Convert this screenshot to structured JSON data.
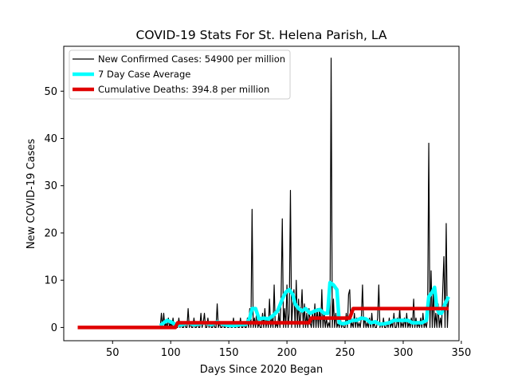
{
  "chart_data": {
    "type": "line",
    "title": "COVID-19 Stats For St. Helena Parish, LA",
    "xlabel": "Days Since 2020 Began",
    "ylabel": "New COVID-19 Cases",
    "xlim": [
      8,
      348
    ],
    "ylim": [
      -2.8,
      59.5
    ],
    "xticks": [
      50,
      100,
      150,
      200,
      250,
      300,
      350
    ],
    "yticks": [
      0,
      10,
      20,
      30,
      40,
      50
    ],
    "legend_position": "top-left",
    "grid": false,
    "series": [
      {
        "name": "New Confirmed Cases: 54900 per million",
        "color": "#000000",
        "points": [
          [
            91,
            0
          ],
          [
            92,
            3
          ],
          [
            93,
            0
          ],
          [
            94,
            3
          ],
          [
            95,
            0
          ],
          [
            96,
            1
          ],
          [
            97,
            0
          ],
          [
            98,
            2
          ],
          [
            99,
            0
          ],
          [
            100,
            1
          ],
          [
            101,
            0
          ],
          [
            102,
            2
          ],
          [
            103,
            0
          ],
          [
            104,
            1
          ],
          [
            105,
            0
          ],
          [
            106,
            0
          ],
          [
            107,
            2
          ],
          [
            108,
            0
          ],
          [
            109,
            1
          ],
          [
            110,
            0
          ],
          [
            111,
            0
          ],
          [
            112,
            1
          ],
          [
            113,
            0
          ],
          [
            114,
            0
          ],
          [
            115,
            4
          ],
          [
            116,
            0
          ],
          [
            117,
            1
          ],
          [
            118,
            0
          ],
          [
            119,
            0
          ],
          [
            120,
            2
          ],
          [
            121,
            0
          ],
          [
            122,
            0
          ],
          [
            123,
            1
          ],
          [
            124,
            0
          ],
          [
            125,
            0
          ],
          [
            126,
            3
          ],
          [
            127,
            0
          ],
          [
            128,
            1
          ],
          [
            129,
            3
          ],
          [
            130,
            0
          ],
          [
            131,
            0
          ],
          [
            132,
            2
          ],
          [
            133,
            0
          ],
          [
            134,
            1
          ],
          [
            135,
            0
          ],
          [
            136,
            0
          ],
          [
            137,
            1
          ],
          [
            138,
            0
          ],
          [
            139,
            0
          ],
          [
            140,
            5
          ],
          [
            141,
            0
          ],
          [
            142,
            1
          ],
          [
            143,
            0
          ],
          [
            144,
            0
          ],
          [
            145,
            1
          ],
          [
            146,
            0
          ],
          [
            147,
            0
          ],
          [
            148,
            1
          ],
          [
            149,
            0
          ],
          [
            150,
            0
          ],
          [
            151,
            1
          ],
          [
            152,
            0
          ],
          [
            153,
            0
          ],
          [
            154,
            2
          ],
          [
            155,
            0
          ],
          [
            156,
            0
          ],
          [
            157,
            1
          ],
          [
            158,
            0
          ],
          [
            159,
            0
          ],
          [
            160,
            2
          ],
          [
            161,
            0
          ],
          [
            162,
            0
          ],
          [
            163,
            1
          ],
          [
            164,
            0
          ],
          [
            165,
            0
          ],
          [
            166,
            2
          ],
          [
            167,
            0
          ],
          [
            168,
            4
          ],
          [
            169,
            0
          ],
          [
            170,
            25
          ],
          [
            171,
            0
          ],
          [
            172,
            2
          ],
          [
            173,
            0
          ],
          [
            174,
            4
          ],
          [
            175,
            0
          ],
          [
            176,
            1
          ],
          [
            177,
            0
          ],
          [
            178,
            0
          ],
          [
            179,
            3
          ],
          [
            180,
            0
          ],
          [
            181,
            4
          ],
          [
            182,
            0
          ],
          [
            183,
            2
          ],
          [
            184,
            0
          ],
          [
            185,
            6
          ],
          [
            186,
            0
          ],
          [
            187,
            2
          ],
          [
            188,
            0
          ],
          [
            189,
            9
          ],
          [
            190,
            0
          ],
          [
            191,
            1
          ],
          [
            192,
            0
          ],
          [
            193,
            3
          ],
          [
            194,
            0
          ],
          [
            195,
            7
          ],
          [
            196,
            23
          ],
          [
            197,
            0
          ],
          [
            198,
            4
          ],
          [
            199,
            0
          ],
          [
            200,
            9
          ],
          [
            201,
            0
          ],
          [
            202,
            3
          ],
          [
            203,
            29
          ],
          [
            204,
            0
          ],
          [
            205,
            5
          ],
          [
            206,
            8
          ],
          [
            207,
            0
          ],
          [
            208,
            10
          ],
          [
            209,
            0
          ],
          [
            210,
            6
          ],
          [
            211,
            0
          ],
          [
            212,
            3
          ],
          [
            213,
            8
          ],
          [
            214,
            0
          ],
          [
            215,
            5
          ],
          [
            216,
            0
          ],
          [
            217,
            3
          ],
          [
            218,
            0
          ],
          [
            219,
            4
          ],
          [
            220,
            1
          ],
          [
            221,
            0
          ],
          [
            222,
            3
          ],
          [
            223,
            0
          ],
          [
            224,
            5
          ],
          [
            225,
            0
          ],
          [
            226,
            4
          ],
          [
            227,
            0
          ],
          [
            228,
            4
          ],
          [
            229,
            0
          ],
          [
            230,
            8
          ],
          [
            231,
            0
          ],
          [
            232,
            3
          ],
          [
            233,
            0
          ],
          [
            234,
            2
          ],
          [
            235,
            0
          ],
          [
            236,
            1
          ],
          [
            237,
            0
          ],
          [
            238,
            57
          ],
          [
            239,
            0
          ],
          [
            240,
            6
          ],
          [
            241,
            0
          ],
          [
            242,
            3
          ],
          [
            243,
            0
          ],
          [
            244,
            1
          ],
          [
            245,
            0
          ],
          [
            246,
            2
          ],
          [
            247,
            0
          ],
          [
            248,
            1
          ],
          [
            249,
            0
          ],
          [
            250,
            0
          ],
          [
            251,
            3
          ],
          [
            252,
            0
          ],
          [
            253,
            7
          ],
          [
            254,
            8
          ],
          [
            255,
            0
          ],
          [
            256,
            1
          ],
          [
            257,
            0
          ],
          [
            258,
            3
          ],
          [
            259,
            0
          ],
          [
            260,
            2
          ],
          [
            261,
            0
          ],
          [
            262,
            1
          ],
          [
            263,
            0
          ],
          [
            264,
            2
          ],
          [
            265,
            9
          ],
          [
            266,
            0
          ],
          [
            267,
            2
          ],
          [
            268,
            0
          ],
          [
            269,
            1
          ],
          [
            270,
            0
          ],
          [
            271,
            2
          ],
          [
            272,
            0
          ],
          [
            273,
            3
          ],
          [
            274,
            0
          ],
          [
            275,
            1
          ],
          [
            276,
            0
          ],
          [
            277,
            0
          ],
          [
            278,
            2
          ],
          [
            279,
            9
          ],
          [
            280,
            0
          ],
          [
            281,
            1
          ],
          [
            282,
            0
          ],
          [
            283,
            2
          ],
          [
            284,
            0
          ],
          [
            285,
            0
          ],
          [
            286,
            1
          ],
          [
            287,
            0
          ],
          [
            288,
            2
          ],
          [
            289,
            0
          ],
          [
            290,
            1
          ],
          [
            291,
            0
          ],
          [
            292,
            3
          ],
          [
            293,
            0
          ],
          [
            294,
            0
          ],
          [
            295,
            2
          ],
          [
            296,
            0
          ],
          [
            297,
            4
          ],
          [
            298,
            0
          ],
          [
            299,
            1
          ],
          [
            300,
            0
          ],
          [
            301,
            2
          ],
          [
            302,
            0
          ],
          [
            303,
            3
          ],
          [
            304,
            0
          ],
          [
            305,
            1
          ],
          [
            306,
            0
          ],
          [
            307,
            2
          ],
          [
            308,
            0
          ],
          [
            309,
            6
          ],
          [
            310,
            0
          ],
          [
            311,
            2
          ],
          [
            312,
            0
          ],
          [
            313,
            1
          ],
          [
            314,
            0
          ],
          [
            315,
            2
          ],
          [
            316,
            0
          ],
          [
            317,
            3
          ],
          [
            318,
            0
          ],
          [
            319,
            1
          ],
          [
            320,
            0
          ],
          [
            321,
            2
          ],
          [
            322,
            39
          ],
          [
            323,
            0
          ],
          [
            324,
            12
          ],
          [
            325,
            0
          ],
          [
            326,
            8
          ],
          [
            327,
            0
          ],
          [
            328,
            3
          ],
          [
            329,
            0
          ],
          [
            330,
            5
          ],
          [
            331,
            0
          ],
          [
            332,
            2
          ],
          [
            333,
            0
          ],
          [
            334,
            8
          ],
          [
            335,
            15
          ],
          [
            336,
            0
          ],
          [
            337,
            22
          ],
          [
            338,
            0
          ],
          [
            339,
            6
          ]
        ]
      },
      {
        "name": "7 Day Case Average",
        "color": "#00ffff",
        "points": [
          [
            91,
            0.4
          ],
          [
            94,
            1.0
          ],
          [
            97,
            1.5
          ],
          [
            100,
            1.2
          ],
          [
            103,
            0.8
          ],
          [
            106,
            0.5
          ],
          [
            110,
            0.6
          ],
          [
            115,
            1.0
          ],
          [
            120,
            0.6
          ],
          [
            125,
            0.8
          ],
          [
            130,
            1.0
          ],
          [
            135,
            0.6
          ],
          [
            140,
            1.2
          ],
          [
            145,
            0.7
          ],
          [
            150,
            0.4
          ],
          [
            155,
            0.4
          ],
          [
            160,
            0.6
          ],
          [
            165,
            0.7
          ],
          [
            168,
            2.0
          ],
          [
            170,
            4.0
          ],
          [
            173,
            4.0
          ],
          [
            176,
            1.8
          ],
          [
            180,
            2.0
          ],
          [
            184,
            1.8
          ],
          [
            188,
            2.5
          ],
          [
            192,
            3.5
          ],
          [
            196,
            6.0
          ],
          [
            199,
            7.5
          ],
          [
            202,
            8.0
          ],
          [
            205,
            7.0
          ],
          [
            207,
            5.0
          ],
          [
            210,
            4.0
          ],
          [
            213,
            3.5
          ],
          [
            216,
            4.0
          ],
          [
            220,
            3.0
          ],
          [
            224,
            3.5
          ],
          [
            228,
            3.8
          ],
          [
            232,
            3.0
          ],
          [
            235,
            3.0
          ],
          [
            237,
            9.5
          ],
          [
            240,
            9.0
          ],
          [
            243,
            8.0
          ],
          [
            245,
            1.0
          ],
          [
            248,
            0.8
          ],
          [
            252,
            1.0
          ],
          [
            256,
            1.5
          ],
          [
            260,
            1.5
          ],
          [
            264,
            2.0
          ],
          [
            268,
            1.8
          ],
          [
            272,
            1.0
          ],
          [
            276,
            1.2
          ],
          [
            280,
            0.7
          ],
          [
            284,
            0.8
          ],
          [
            288,
            1.0
          ],
          [
            292,
            1.5
          ],
          [
            296,
            1.5
          ],
          [
            300,
            1.5
          ],
          [
            304,
            1.5
          ],
          [
            308,
            1.0
          ],
          [
            312,
            1.0
          ],
          [
            316,
            1.0
          ],
          [
            320,
            1.5
          ],
          [
            322,
            6.5
          ],
          [
            325,
            7.5
          ],
          [
            327,
            8.5
          ],
          [
            329,
            4.0
          ],
          [
            331,
            3.0
          ],
          [
            333,
            3.0
          ],
          [
            336,
            5.0
          ],
          [
            339,
            6.5
          ]
        ]
      },
      {
        "name": "Cumulative Deaths: 394.8 per million",
        "color": "#e00000",
        "points": [
          [
            20,
            0
          ],
          [
            104,
            0
          ],
          [
            106,
            1
          ],
          [
            219,
            1
          ],
          [
            221,
            2
          ],
          [
            254,
            2
          ],
          [
            257,
            4
          ],
          [
            339,
            4
          ]
        ]
      }
    ]
  }
}
